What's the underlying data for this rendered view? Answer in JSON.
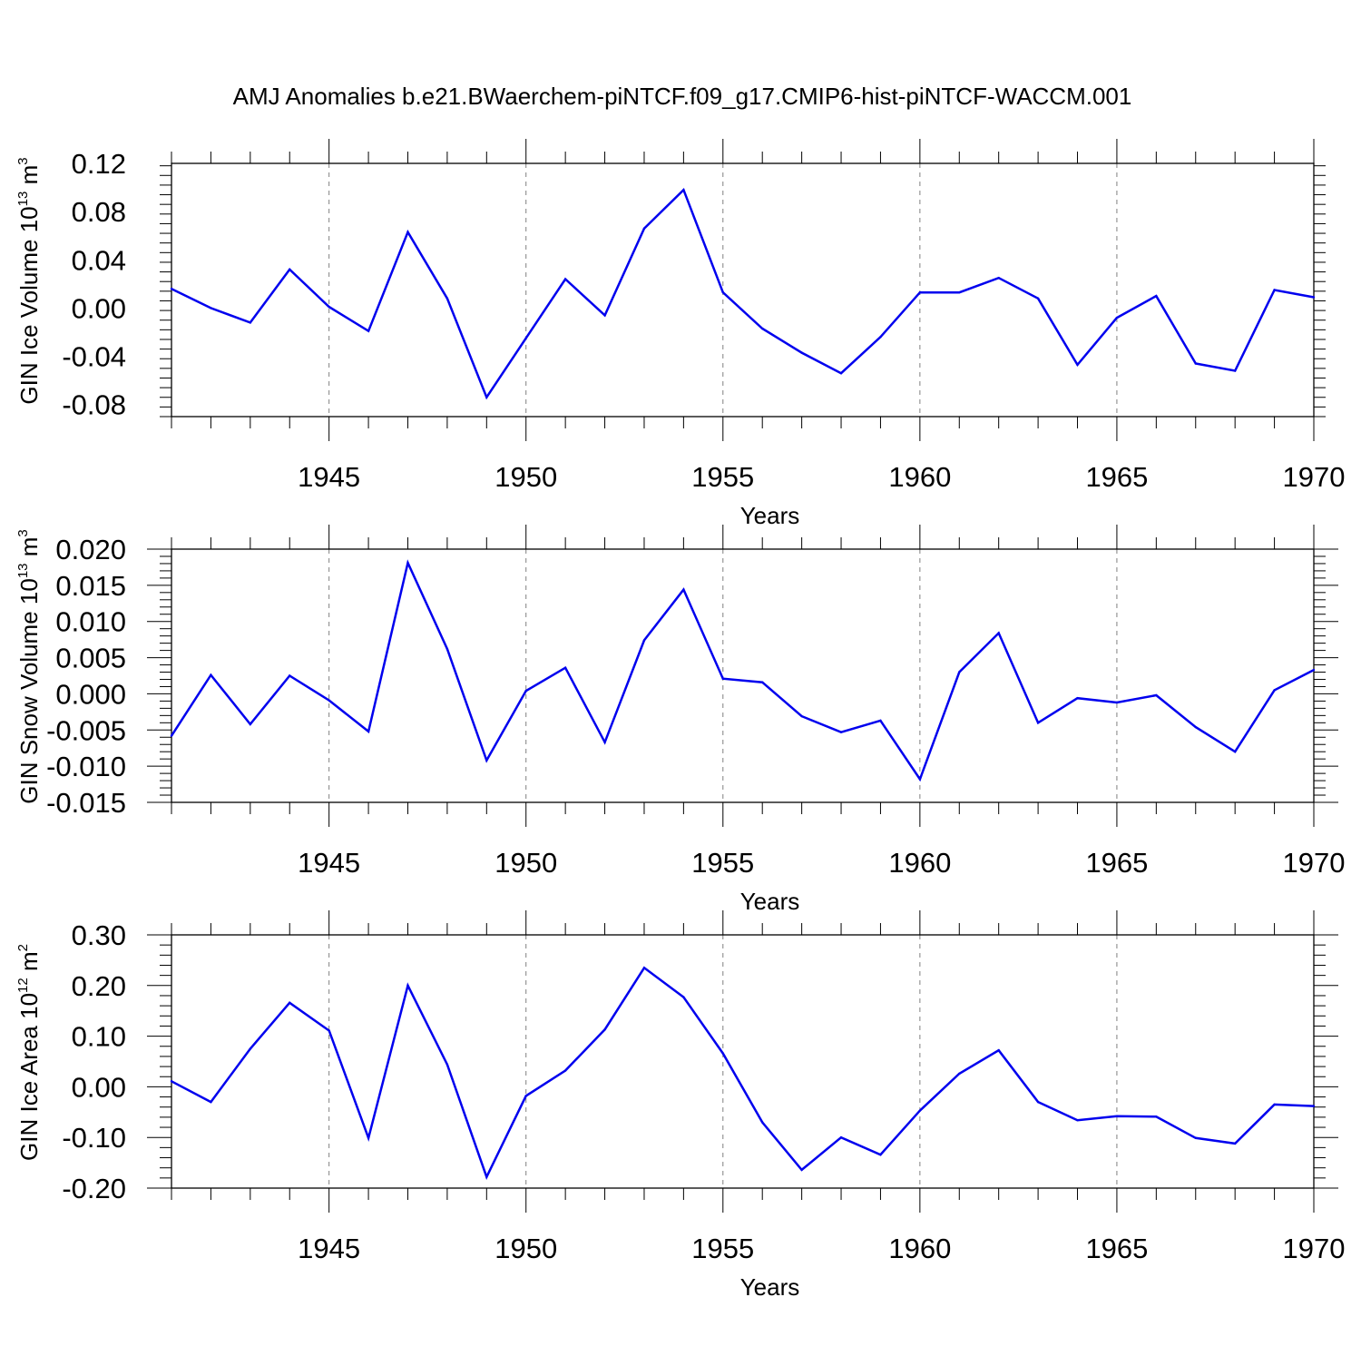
{
  "title": "AMJ Anomalies b.e21.BWaerchem-piNTCF.f09_g17.CMIP6-hist-piNTCF-WACCM.001",
  "colors": {
    "line": "#0000ee",
    "axis": "#000000",
    "grid": "#808080"
  },
  "chart_data": [
    {
      "type": "line",
      "ylabel": {
        "text": "GIN Ice Volume 10",
        "sup": "13",
        "unit": " m",
        "unit_sup": "3"
      },
      "xlabel": "Years",
      "xlim": [
        1941,
        1970
      ],
      "ylim": [
        -0.09,
        0.12
      ],
      "yticks": [
        -0.08,
        -0.04,
        0.0,
        0.04,
        0.08,
        0.12
      ],
      "ytick_labels": [
        "-0.08",
        "-0.04",
        "0.00",
        "0.04",
        "0.08",
        "0.12"
      ],
      "xticks": [
        1945,
        1950,
        1955,
        1960,
        1965,
        1970
      ],
      "xtick_labels": [
        "1945",
        "1950",
        "1955",
        "1960",
        "1965",
        "1970"
      ],
      "grid_x": [
        1945,
        1950,
        1955,
        1960,
        1965
      ],
      "series": [
        {
          "name": "GIN Ice Volume",
          "x": [
            1941,
            1942,
            1943,
            1944,
            1945,
            1946,
            1947,
            1948,
            1949,
            1950,
            1951,
            1952,
            1953,
            1954,
            1955,
            1956,
            1957,
            1958,
            1959,
            1960,
            1961,
            1962,
            1963,
            1964,
            1965,
            1966,
            1967,
            1968,
            1969,
            1970
          ],
          "values": [
            0.016,
            0.0,
            -0.012,
            0.032,
            0.001,
            -0.019,
            0.063,
            0.008,
            -0.074,
            -0.025,
            0.024,
            -0.006,
            0.066,
            0.098,
            0.013,
            -0.017,
            -0.037,
            -0.054,
            -0.024,
            0.013,
            0.013,
            0.025,
            0.008,
            -0.047,
            -0.008,
            0.01,
            -0.046,
            -0.052,
            0.015,
            0.009
          ]
        }
      ]
    },
    {
      "type": "line",
      "ylabel": {
        "text": "GIN Snow Volume 10",
        "sup": "13",
        "unit": " m",
        "unit_sup": "3"
      },
      "xlabel": "Years",
      "xlim": [
        1941,
        1970
      ],
      "ylim": [
        -0.015,
        0.02
      ],
      "yticks": [
        -0.015,
        -0.01,
        -0.005,
        0.0,
        0.005,
        0.01,
        0.015,
        0.02
      ],
      "ytick_labels": [
        "-0.015",
        "-0.010",
        "-0.005",
        "0.000",
        "0.005",
        "0.010",
        "0.015",
        "0.020"
      ],
      "xticks": [
        1945,
        1950,
        1955,
        1960,
        1965,
        1970
      ],
      "xtick_labels": [
        "1945",
        "1950",
        "1955",
        "1960",
        "1965",
        "1970"
      ],
      "grid_x": [
        1945,
        1950,
        1955,
        1960,
        1965
      ],
      "series": [
        {
          "name": "GIN Snow Volume",
          "x": [
            1941,
            1942,
            1943,
            1944,
            1945,
            1946,
            1947,
            1948,
            1949,
            1950,
            1951,
            1952,
            1953,
            1954,
            1955,
            1956,
            1957,
            1958,
            1959,
            1960,
            1961,
            1962,
            1963,
            1964,
            1965,
            1966,
            1967,
            1968,
            1969,
            1970
          ],
          "values": [
            -0.0058,
            0.0026,
            -0.0042,
            0.0025,
            -0.0009,
            -0.0052,
            0.0181,
            0.0062,
            -0.0092,
            0.0004,
            0.0036,
            -0.0067,
            0.0074,
            0.0144,
            0.0021,
            0.0016,
            -0.0031,
            -0.0053,
            -0.0037,
            -0.0118,
            0.003,
            0.0084,
            -0.004,
            -0.0006,
            -0.0012,
            -0.0002,
            -0.0046,
            -0.008,
            0.0005,
            0.0033
          ]
        }
      ]
    },
    {
      "type": "line",
      "ylabel": {
        "text": "GIN Ice Area 10",
        "sup": "12",
        "unit": " m",
        "unit_sup": "2"
      },
      "xlabel": "Years",
      "xlim": [
        1941,
        1970
      ],
      "ylim": [
        -0.2,
        0.3
      ],
      "yticks": [
        -0.2,
        -0.1,
        0.0,
        0.1,
        0.2,
        0.3
      ],
      "ytick_labels": [
        "-0.20",
        "-0.10",
        "0.00",
        "0.10",
        "0.20",
        "0.30"
      ],
      "xticks": [
        1945,
        1950,
        1955,
        1960,
        1965,
        1970
      ],
      "xtick_labels": [
        "1945",
        "1950",
        "1955",
        "1960",
        "1965",
        "1970"
      ],
      "grid_x": [
        1945,
        1950,
        1955,
        1960,
        1965
      ],
      "series": [
        {
          "name": "GIN Ice Area",
          "x": [
            1941,
            1942,
            1943,
            1944,
            1945,
            1946,
            1947,
            1948,
            1949,
            1950,
            1951,
            1952,
            1953,
            1954,
            1955,
            1956,
            1957,
            1958,
            1959,
            1960,
            1961,
            1962,
            1963,
            1964,
            1965,
            1966,
            1967,
            1968,
            1969,
            1970
          ],
          "values": [
            0.011,
            -0.03,
            0.075,
            0.166,
            0.111,
            -0.101,
            0.2,
            0.044,
            -0.178,
            -0.018,
            0.032,
            0.113,
            0.235,
            0.177,
            0.066,
            -0.07,
            -0.164,
            -0.1,
            -0.134,
            -0.047,
            0.026,
            0.072,
            -0.03,
            -0.066,
            -0.058,
            -0.059,
            -0.101,
            -0.112,
            -0.035,
            -0.038
          ]
        }
      ]
    }
  ]
}
